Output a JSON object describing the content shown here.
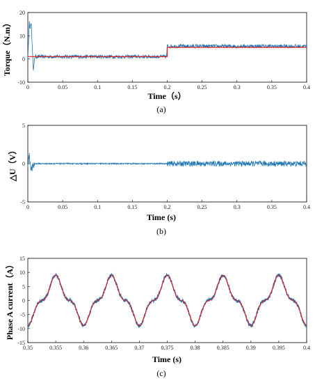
{
  "figure_labels": [
    "(a)",
    "(b)",
    "(c)"
  ],
  "chart_data": [
    {
      "type": "line",
      "panel_label": "(a)",
      "xlabel": "Time（s）",
      "ylabel": "Torque（N.m）",
      "xlim": [
        0,
        0.4
      ],
      "ylim": [
        -10,
        20
      ],
      "xticks": [
        "0",
        "0.05",
        "0.1",
        "0.15",
        "0.2",
        "0.25",
        "0.3",
        "0.35",
        "0.4"
      ],
      "yticks": [
        "-10",
        "0",
        "10",
        "20"
      ],
      "grid": false,
      "series": [
        {
          "role": "measured",
          "color": "#1f77b4",
          "x": [
            0,
            0.002,
            0.005,
            0.008,
            0.01,
            0.05,
            0.1,
            0.15,
            0.199,
            0.2,
            0.25,
            0.3,
            0.35,
            0.4
          ],
          "y": [
            0,
            15,
            14,
            -5,
            1,
            1,
            1,
            1,
            1,
            5.5,
            5.5,
            5.5,
            5.5,
            5.5
          ],
          "noise_amplitude": 0.8
        },
        {
          "role": "reference",
          "color": "#e41a1c",
          "x": [
            0,
            0.2,
            0.2,
            0.4
          ],
          "y": [
            1,
            1,
            5,
            5
          ]
        }
      ]
    },
    {
      "type": "line",
      "panel_label": "(b)",
      "xlabel": "Time (s)",
      "ylabel": "△U（V）",
      "xlim": [
        0,
        0.4
      ],
      "ylim": [
        -5,
        5
      ],
      "xticks": [
        "0",
        "0.05",
        "0.1",
        "0.15",
        "0.2",
        "0.25",
        "0.3",
        "0.35",
        "0.4"
      ],
      "yticks": [
        "-5",
        "0",
        "5"
      ],
      "grid": false,
      "series": [
        {
          "role": "measured",
          "color": "#1f77b4",
          "x": [
            0,
            0.002,
            0.005,
            0.01,
            0.2,
            0.4
          ],
          "y": [
            0,
            1.0,
            -0.8,
            0,
            0,
            0
          ],
          "noise_amplitude_0_to_0.2": 0.08,
          "noise_amplitude_0.2_to_0.4": 0.35
        }
      ]
    },
    {
      "type": "line",
      "panel_label": "(c)",
      "xlabel": "Time (s)",
      "ylabel": "Phase A current（A）",
      "xlim": [
        0.35,
        0.4
      ],
      "ylim": [
        -15,
        15
      ],
      "xticks": [
        "0.35",
        "0.355",
        "0.36",
        "0.365",
        "0.37",
        "0.375",
        "0.38",
        "0.385",
        "0.39",
        "0.395",
        "0.4"
      ],
      "yticks": [
        "-15",
        "-10",
        "-5",
        "0",
        "5",
        "10",
        "15"
      ],
      "grid": false,
      "series": [
        {
          "role": "measured",
          "color": "#1f77b4",
          "period": 0.01,
          "peak_times": [
            0.355,
            0.365,
            0.375,
            0.385,
            0.395
          ],
          "amplitude": 9,
          "noise_amplitude": 0.6
        },
        {
          "role": "reference",
          "color": "#e41a1c",
          "period": 0.01,
          "peak_times": [
            0.355,
            0.365,
            0.375,
            0.385,
            0.395
          ],
          "amplitude": 9
        }
      ]
    }
  ]
}
